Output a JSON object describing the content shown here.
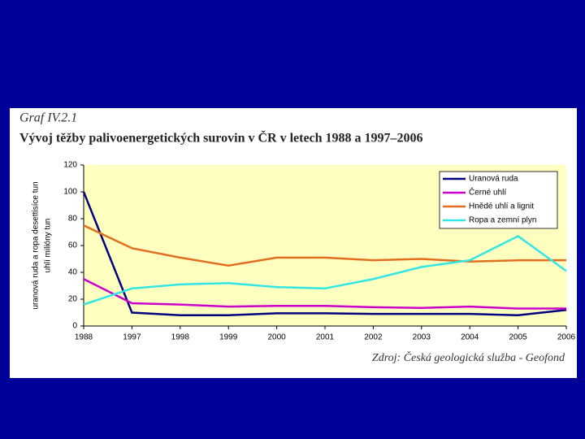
{
  "chart_data": {
    "type": "line",
    "label": "Graf IV.2.1",
    "title": "Vývoj těžby palivoenergetických surovin v ČR v letech 1988 a 1997–2006",
    "ylabel": [
      "uranová ruda a ropa desettisíce tun",
      "uhlí milióny tun"
    ],
    "source": "Zdroj: Česká geologická služba - Geofond",
    "categories": [
      "1988",
      "1997",
      "1998",
      "1999",
      "2000",
      "2001",
      "2002",
      "2003",
      "2004",
      "2005",
      "2006"
    ],
    "series": [
      {
        "name": "Uranová ruda",
        "color": "#000080",
        "values": [
          100,
          10,
          8,
          8,
          9.5,
          9.5,
          9,
          9,
          9,
          8,
          12
        ]
      },
      {
        "name": "Černé uhlí",
        "color": "#cc00cc",
        "values": [
          35,
          17,
          16,
          14.5,
          15,
          15,
          14,
          13.5,
          14.5,
          13,
          13
        ]
      },
      {
        "name": "Hnědé uhlí a lignit",
        "color": "#e07020",
        "values": [
          75,
          58,
          51,
          45,
          51,
          51,
          49,
          50,
          48,
          49,
          49
        ]
      },
      {
        "name": "Ropa a zemní plyn",
        "color": "#33e6e6",
        "values": [
          16,
          28,
          31,
          32,
          29,
          28,
          35,
          44,
          49,
          67,
          41
        ]
      }
    ],
    "ylim": [
      0,
      120
    ],
    "yticks": [
      0,
      20,
      40,
      60,
      80,
      100,
      120
    ]
  }
}
